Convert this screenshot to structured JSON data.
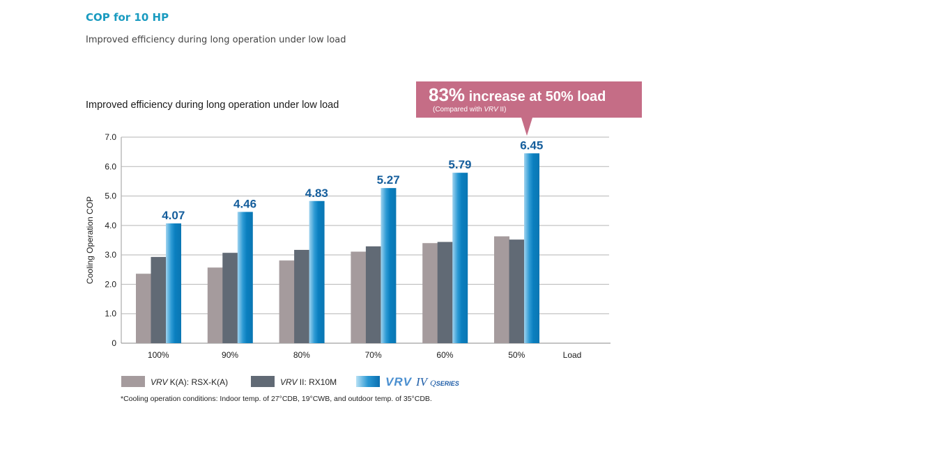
{
  "header": {
    "title": "COP for 10 HP",
    "subtitle": "Improved efficiency during long operation under low load"
  },
  "callout": {
    "big": "83%",
    "main": " increase at 50% load",
    "sub_prefix": "(Compared with ",
    "sub_italic": "VRV",
    "sub_suffix": " II)",
    "color": "#c56d86"
  },
  "legend": {
    "items": [
      {
        "italic": "VRV",
        "text": " K(A): RSX-K(A)",
        "color": "#a59b9d"
      },
      {
        "italic": "VRV",
        "text": " II: RX10M",
        "color": "#616a75"
      },
      {
        "logo_vrv": "VRV",
        "logo_iv": "IV",
        "logo_q": "Q",
        "logo_series": "SERIES",
        "color": "#0a7fbf"
      }
    ]
  },
  "footnote": "*Cooling operation conditions: Indoor temp. of 27°CDB, 19°CWB,  and outdoor temp. of 35°CDB.",
  "chart_data": {
    "type": "bar",
    "title": "Improved efficiency during long operation under low load",
    "xlabel": "Load",
    "ylabel": "Cooling Operation COP",
    "ylim": [
      0,
      7
    ],
    "yticks": [
      0,
      1,
      2,
      3,
      4,
      5,
      6,
      7
    ],
    "ytick_labels": [
      "0",
      "1.0",
      "2.0",
      "3.0",
      "4.0",
      "5.0",
      "6.0",
      "7.0"
    ],
    "grid": true,
    "legend_position": "bottom",
    "categories": [
      "100%",
      "90%",
      "80%",
      "70%",
      "60%",
      "50%"
    ],
    "series": [
      {
        "name": "VRV K(A): RSX-K(A)",
        "values": [
          2.36,
          2.57,
          2.81,
          3.11,
          3.4,
          3.63
        ],
        "color": "#a59b9d",
        "labeled": false
      },
      {
        "name": "VRV II: RX10M",
        "values": [
          2.93,
          3.07,
          3.17,
          3.29,
          3.44,
          3.52
        ],
        "color": "#616a75",
        "labeled": false
      },
      {
        "name": "VRV IV Q SERIES",
        "values": [
          4.07,
          4.46,
          4.83,
          5.27,
          5.79,
          6.45
        ],
        "color": "#0a7fbf",
        "labeled": true,
        "labels": [
          "4.07",
          "4.46",
          "4.83",
          "5.27",
          "5.79",
          "6.45"
        ]
      }
    ],
    "annotation": "83% increase at 50% load (Compared with VRV II)"
  }
}
